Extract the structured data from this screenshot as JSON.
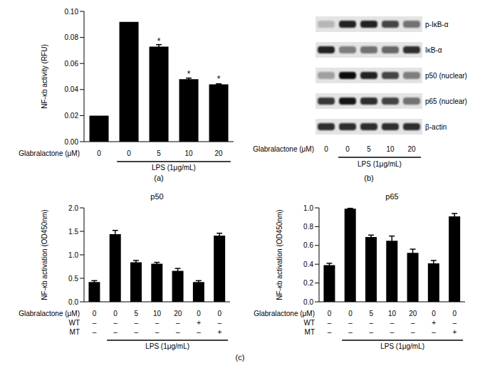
{
  "panel_labels": {
    "a": "(a)",
    "b": "(b)",
    "c": "(c)"
  },
  "chart_data": [
    {
      "type": "bar",
      "ylabel": "NF-κb activity (RFU)",
      "categories": [
        "0",
        "0",
        "5",
        "10",
        "20"
      ],
      "values": [
        0.02,
        0.092,
        0.073,
        0.048,
        0.044
      ],
      "errors": [
        0,
        0,
        0.0015,
        0.0008,
        0.0004
      ],
      "color": "#000000",
      "ylim": [
        0,
        0.1
      ],
      "yticks": [
        {
          "value": 0,
          "label": "0.00"
        },
        {
          "value": 0.02,
          "label": "0.02"
        },
        {
          "value": 0.04,
          "label": "0.04"
        },
        {
          "value": 0.06,
          "label": "0.06"
        },
        {
          "value": 0.08,
          "label": "0.08"
        },
        {
          "value": 0.1,
          "label": "0.10"
        }
      ],
      "x_label": "Glabralactone (μM)",
      "extra_rows": [],
      "group_label": "LPS (1μg/mL)",
      "group_span": [
        1,
        4
      ],
      "annotations": [
        {
          "index": 2,
          "text": "*"
        },
        {
          "index": 3,
          "text": "*"
        },
        {
          "index": 4,
          "text": "*"
        }
      ]
    },
    {
      "type": "bar",
      "title": "p50",
      "ylabel": "NF-κb activation (OD450nm)",
      "categories": [
        "0",
        "0",
        "5",
        "10",
        "20",
        "0",
        "0"
      ],
      "values": [
        0.42,
        1.44,
        0.84,
        0.81,
        0.66,
        0.42,
        1.41
      ],
      "errors": [
        0.03,
        0.08,
        0.04,
        0.03,
        0.05,
        0.03,
        0.05
      ],
      "color": "#000000",
      "ylim": [
        0,
        2
      ],
      "yticks": [
        {
          "value": 0,
          "label": "0.0"
        },
        {
          "value": 0.5,
          "label": "0.5"
        },
        {
          "value": 1,
          "label": "1.0"
        },
        {
          "value": 1.5,
          "label": "1.5"
        },
        {
          "value": 2,
          "label": "2.0"
        }
      ],
      "x_label": "Glabralactone (μM)",
      "extra_rows": [
        {
          "label": "WT",
          "values": [
            "–",
            "–",
            "–",
            "–",
            "–",
            "+",
            "–"
          ]
        },
        {
          "label": "MT",
          "values": [
            "–",
            "–",
            "–",
            "–",
            "–",
            "–",
            "+"
          ]
        }
      ],
      "group_label": "LPS (1μg/mL)",
      "group_span": [
        1,
        6
      ],
      "annotations": []
    },
    {
      "type": "bar",
      "title": "p65",
      "ylabel": "NF-κb activation (OD450nm)",
      "categories": [
        "0",
        "0",
        "5",
        "10",
        "20",
        "0",
        "0"
      ],
      "values": [
        0.39,
        0.99,
        0.69,
        0.65,
        0.52,
        0.41,
        0.91
      ],
      "errors": [
        0.02,
        0.005,
        0.02,
        0.05,
        0.04,
        0.03,
        0.03
      ],
      "color": "#000000",
      "ylim": [
        0,
        1
      ],
      "yticks": [
        {
          "value": 0,
          "label": "0.0"
        },
        {
          "value": 0.2,
          "label": "0.2"
        },
        {
          "value": 0.4,
          "label": "0.4"
        },
        {
          "value": 0.6,
          "label": "0.6"
        },
        {
          "value": 0.8,
          "label": "0.8"
        },
        {
          "value": 1,
          "label": "1.0"
        }
      ],
      "x_label": "Glabralactone (μM)",
      "extra_rows": [
        {
          "label": "WT",
          "values": [
            "–",
            "–",
            "–",
            "–",
            "–",
            "+",
            "–"
          ]
        },
        {
          "label": "MT",
          "values": [
            "–",
            "–",
            "–",
            "–",
            "–",
            "–",
            "+"
          ]
        }
      ],
      "group_label": "LPS (1μg/mL)",
      "group_span": [
        1,
        6
      ],
      "annotations": []
    }
  ],
  "blot": {
    "rows": [
      {
        "label": "p-IκB-α",
        "intensities": [
          0.2,
          0.85,
          0.85,
          0.7,
          0.5
        ]
      },
      {
        "label": "IκB-α",
        "intensities": [
          0.85,
          0.45,
          0.5,
          0.55,
          0.8
        ]
      },
      {
        "label": "p50 (nuclear)",
        "intensities": [
          0.3,
          0.95,
          0.85,
          0.7,
          0.45
        ]
      },
      {
        "label": "p65 (nuclear)",
        "intensities": [
          0.75,
          0.9,
          0.8,
          0.7,
          0.5
        ]
      },
      {
        "label": "β-actin",
        "intensities": [
          0.8,
          0.8,
          0.8,
          0.8,
          0.8
        ]
      }
    ],
    "x_label": "Glabralactone (μM)",
    "lanes": [
      "0",
      "0",
      "5",
      "10",
      "20"
    ],
    "group_label": "LPS (1μg/mL)",
    "group_span": [
      1,
      4
    ]
  }
}
